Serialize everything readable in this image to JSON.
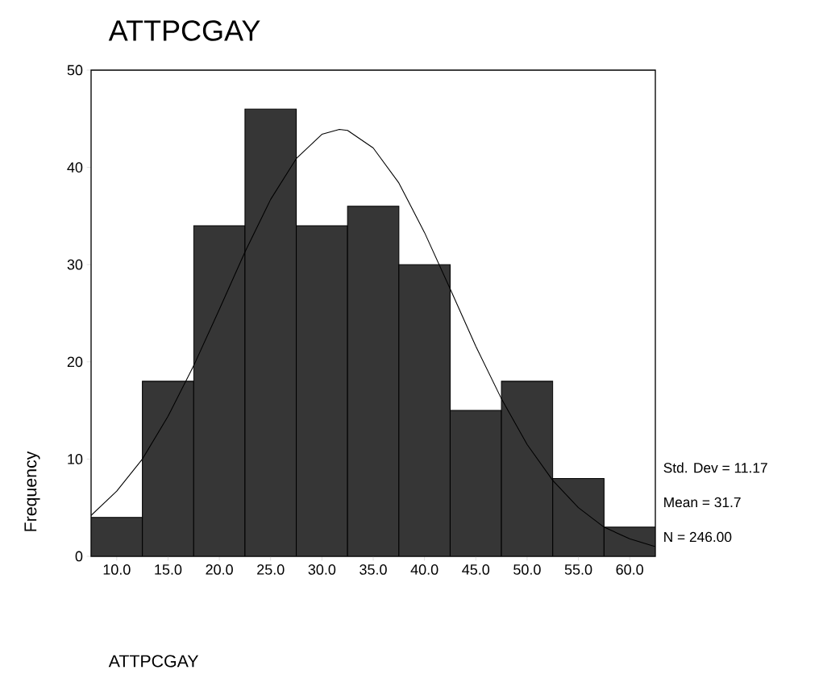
{
  "chart_data": {
    "type": "histogram",
    "title": "ATTPCGAY",
    "xlabel": "ATTPCGAY",
    "ylabel": "Frequency",
    "bins": [
      7.5,
      12.5,
      17.5,
      22.5,
      27.5,
      32.5,
      37.5,
      42.5,
      47.5,
      52.5,
      57.5,
      62.5
    ],
    "series": [
      {
        "type": "histogram",
        "color": "#363636",
        "values": [
          4,
          18,
          34,
          46,
          34,
          36,
          30,
          15,
          18,
          8,
          3
        ]
      },
      {
        "type": "line",
        "color": "#000000",
        "x": [
          7.5,
          10,
          12.5,
          15,
          17.5,
          20,
          22.5,
          25,
          27.5,
          30,
          31.7,
          32.5,
          35,
          37.5,
          40,
          42.5,
          45,
          47.5,
          50,
          52.5,
          55,
          57.5,
          60,
          62.5
        ],
        "values": [
          4.2,
          6.7,
          10.0,
          14.4,
          19.6,
          25.4,
          31.3,
          36.7,
          40.9,
          43.4,
          43.9,
          43.8,
          42.0,
          38.4,
          33.3,
          27.5,
          21.6,
          16.2,
          11.5,
          7.8,
          5.0,
          3.0,
          1.8,
          1.0
        ]
      }
    ],
    "xlim": [
      7.5,
      62.5
    ],
    "ylim": [
      0,
      50
    ],
    "xticks": [
      {
        "value": 10,
        "label": "10.0"
      },
      {
        "value": 15,
        "label": "15.0"
      },
      {
        "value": 20,
        "label": "20.0"
      },
      {
        "value": 25,
        "label": "25.0"
      },
      {
        "value": 30,
        "label": "30.0"
      },
      {
        "value": 35,
        "label": "35.0"
      },
      {
        "value": 40,
        "label": "40.0"
      },
      {
        "value": 45,
        "label": "45.0"
      },
      {
        "value": 50,
        "label": "50.0"
      },
      {
        "value": 55,
        "label": "55.0"
      },
      {
        "value": 60,
        "label": "60.0"
      }
    ],
    "yticks": [
      0,
      10,
      20,
      30,
      40,
      50
    ],
    "annotations": [
      "Std. Dev = 11.17",
      "Mean = 31.7",
      "N = 246.00"
    ]
  }
}
